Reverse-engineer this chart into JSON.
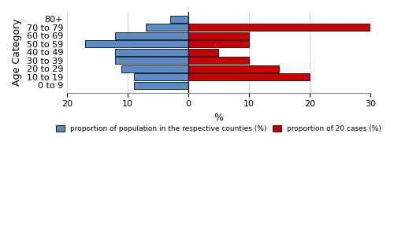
{
  "age_categories": [
    "0 to 9",
    "10 to 19",
    "20 to 29",
    "30 to 39",
    "40 to 49",
    "50 to 59",
    "60 to 69",
    "70 to 79",
    "80+"
  ],
  "blue_values": [
    9.0,
    9.0,
    11.0,
    12.0,
    12.0,
    17.0,
    12.0,
    7.0,
    3.0
  ],
  "red_values": [
    0.0,
    20.0,
    15.0,
    10.0,
    5.0,
    10.0,
    10.0,
    30.0,
    0.0
  ],
  "blue_color": "#5B8CC8",
  "red_color": "#CC0000",
  "bar_edge_color": "#222222",
  "xlabel": "%",
  "ylabel": "Age Category",
  "xlim_left": -20,
  "xlim_right": 30,
  "xticks": [
    -20,
    -10,
    0,
    10,
    20,
    30
  ],
  "xticklabels": [
    "20",
    "10",
    "0",
    "10",
    "20",
    "30"
  ],
  "grid_color": "#d0d0d0",
  "background_color": "#ffffff",
  "legend_blue_label": "proportion of population in the respective counties (%)",
  "legend_red_label": "proportion of 20 cases (%)",
  "bar_linewidth": 0.7
}
